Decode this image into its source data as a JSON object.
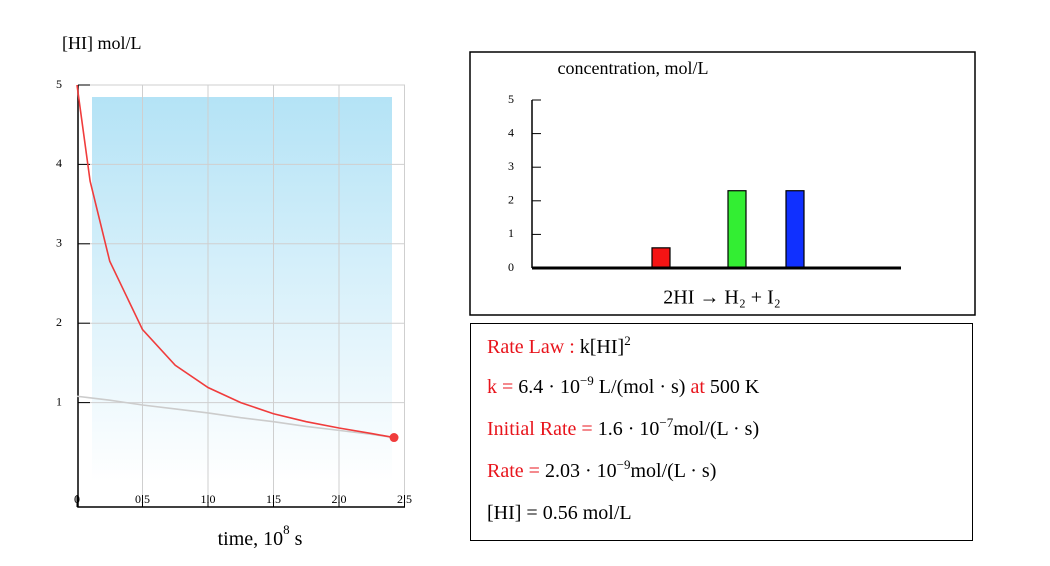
{
  "chart_data": [
    {
      "type": "line",
      "title": "[HI] mol/L",
      "x_label": [
        {
          "text": "time, 10"
        },
        {
          "text": "8",
          "sup": true
        },
        {
          "text": " s"
        }
      ],
      "x": [
        0,
        0.1,
        0.25,
        0.5,
        0.75,
        1.0,
        1.25,
        1.5,
        1.75,
        2.0,
        2.25,
        2.42
      ],
      "series": [
        {
          "color": "#f03c3c",
          "values": [
            5,
            3.79,
            2.78,
            1.92,
            1.47,
            1.19,
            1.0,
            0.86,
            0.76,
            0.68,
            0.61,
            0.56
          ],
          "end_marker": true
        },
        {
          "color": "#cccccc",
          "values": [
            1.08,
            1.06,
            1.03,
            0.97,
            0.92,
            0.87,
            0.81,
            0.76,
            0.7,
            0.65,
            0.6,
            0.56
          ]
        }
      ],
      "xlim": [
        0,
        2.5
      ],
      "ylim": [
        0,
        5
      ],
      "xticks": [
        0,
        0.5,
        {
          "value": 1,
          "label": "1.0"
        },
        1.5,
        {
          "value": 2,
          "label": "2.0"
        },
        2.5
      ],
      "yticks": [
        1,
        2,
        3,
        4,
        5
      ],
      "grid": true
    },
    {
      "type": "bar",
      "title": "concentration, mol/L",
      "x_label": "2HI → H₂ + I₂",
      "categories": [
        null,
        null,
        null
      ],
      "values": [
        0.6,
        2.3,
        2.3
      ],
      "colors": [
        "#f41414",
        "#33ee33",
        "#1030ff"
      ],
      "ylim": [
        0,
        5
      ],
      "yticks": [
        0,
        1,
        2,
        3,
        4,
        5
      ]
    }
  ],
  "rate_panel": {
    "lines": [
      [
        {
          "text": "Rate Law : ",
          "color": "#e8141c"
        },
        {
          "text": "k[HI]"
        },
        {
          "text": "2",
          "sup": true
        }
      ],
      [
        {
          "text": "k = ",
          "color": "#e8141c"
        },
        {
          "text": "6.4 · 10"
        },
        {
          "text": "−9",
          "sup": true
        },
        {
          "text": " L/(mol · s) "
        },
        {
          "text": "at",
          "color": "#e8141c"
        },
        {
          "text": " 500 K"
        }
      ],
      [
        {
          "text": "Initial Rate = ",
          "color": "#e8141c"
        },
        {
          "text": "1.6 · 10"
        },
        {
          "text": "−7",
          "sup": true
        },
        {
          "text": "mol/(L · s)"
        }
      ],
      [
        {
          "text": "Rate = ",
          "color": "#e8141c"
        },
        {
          "text": "2.03 · 10"
        },
        {
          "text": "−9",
          "sup": true
        },
        {
          "text": "mol/(L · s)"
        }
      ],
      [
        {
          "text": "[HI] = 0.56 mol/L"
        }
      ]
    ]
  }
}
